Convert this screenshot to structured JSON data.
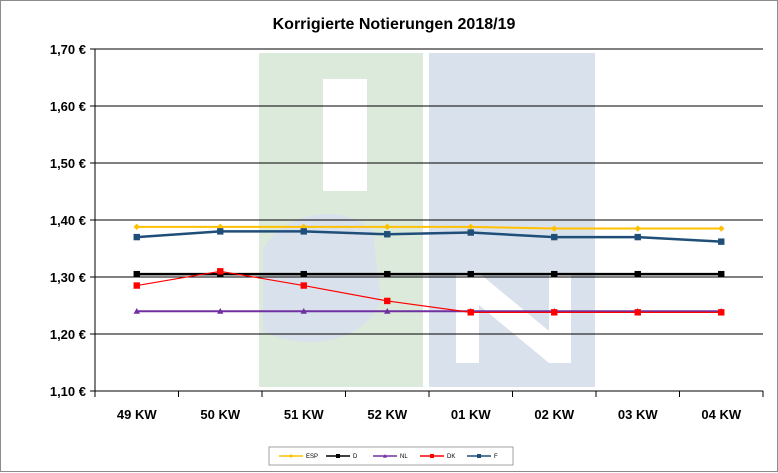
{
  "chart_data": {
    "type": "line",
    "title": "Korrigierte Notierungen 2018/19",
    "xlabel": "",
    "ylabel": "",
    "categories": [
      "49 KW",
      "50 KW",
      "51 KW",
      "52 KW",
      "01 KW",
      "02 KW",
      "03 KW",
      "04 KW"
    ],
    "ylim": [
      1.1,
      1.7
    ],
    "yticks": [
      "1,10 €",
      "1,20 €",
      "1,30 €",
      "1,40 €",
      "1,50 €",
      "1,60 €",
      "1,70 €"
    ],
    "grid": true,
    "legend_position": "bottom",
    "series": [
      {
        "name": "ESP",
        "color": "#ffc000",
        "marker": "diamond",
        "values": [
          1.388,
          1.388,
          1.388,
          1.388,
          1.388,
          1.385,
          1.385,
          1.385
        ]
      },
      {
        "name": "D",
        "color": "#000000",
        "marker": "square",
        "values": [
          1.305,
          1.305,
          1.305,
          1.305,
          1.305,
          1.305,
          1.305,
          1.305
        ]
      },
      {
        "name": "NL",
        "color": "#7030a0",
        "marker": "triangle",
        "values": [
          1.24,
          1.24,
          1.24,
          1.24,
          1.24,
          1.24,
          1.24,
          1.24
        ]
      },
      {
        "name": "DK",
        "color": "#ff0000",
        "marker": "square",
        "values": [
          1.285,
          1.31,
          1.285,
          1.258,
          1.238,
          1.238,
          1.238,
          1.238
        ]
      },
      {
        "name": "F",
        "color": "#1f4e79",
        "marker": "square",
        "values": [
          1.37,
          1.38,
          1.38,
          1.375,
          1.378,
          1.37,
          1.37,
          1.362
        ]
      }
    ]
  },
  "watermark": {
    "letters": [
      "I",
      "S",
      "N"
    ],
    "colors": {
      "green": "#dbeadb",
      "blue": "#d9e1ec"
    }
  }
}
